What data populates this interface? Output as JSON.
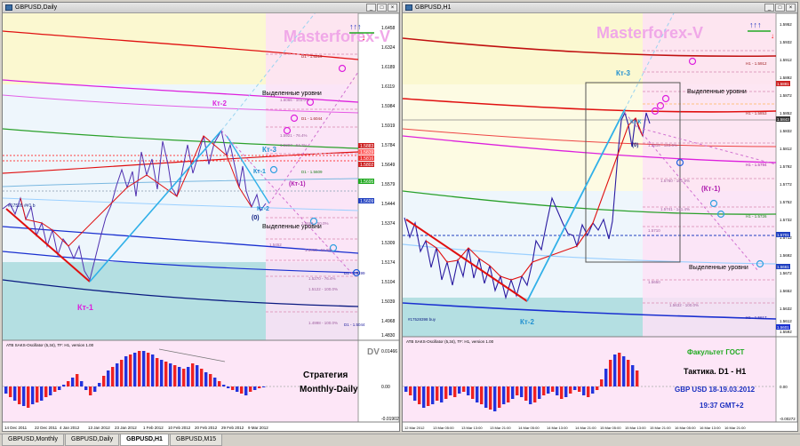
{
  "tabs": [
    "GBPUSD,Monthly",
    "GBPUSD,Daily",
    "GBPUSD,H1",
    "GBPUSD,M15"
  ],
  "active_tab": 2,
  "left": {
    "title": "GBPUSD,Daily",
    "watermark": "Masterforex-V",
    "arrows": "↑↑↑",
    "arrow_down": "↓",
    "prices": [
      "1.6458",
      "1.6324",
      "1.6189",
      "1.6119",
      "1.5984",
      "1.5919",
      "1.5784",
      "1.5649",
      "1.5579",
      "1.5444",
      "1.5374",
      "1.5309",
      "1.5174",
      "1.5104",
      "1.5039",
      "1.4968",
      "1.4830"
    ],
    "hl_boxes": [
      "1.5883",
      "1.5839",
      "1.5816",
      "1.5802",
      "1.5695",
      "1.5609"
    ],
    "level_labels": {
      "d1_upper": "D1 - 1.6219",
      "d1_mid": "D1 - 1.6044",
      "d1_low": "D1 - 1.5609",
      "d1_bottom": "D1 - 1.5044",
      "d1_1": "D1 - 1.5199",
      "lbl_a": "1.6066 - 103.0%",
      "lbl_b": "1.5921 - 76.4%",
      "lbl_c": "1.5807 - 64.2%",
      "lbl_d": "1.5691 - 50.0%",
      "lbl_e": "1.5413 - 61.8%",
      "lbl_f": "1.5270 - 76.4%",
      "lbl_g": "1.5122 - 100.0%",
      "lbl_h": "1.4998 - 100.0%",
      "lbl_i": "1.5452"
    },
    "buy_label": "#17526 ##1 b",
    "selected_upper": "Выделенные уровни",
    "selected_lower": "Выделенные уровни",
    "kt2": "Кт-2",
    "kt3": "Кт-3",
    "kt1_small": "Кт-1",
    "kt1_paren": "(Кт-1)",
    "kt2_small": "Кт-2",
    "zero": "(0)",
    "kt1_big": "Кт-1",
    "osc_title": "ATB SAKS-Oscillator (5,34), TF: H1, version 1.00",
    "osc_levels": [
      "0.01466",
      "0.00",
      "-0.01902"
    ],
    "dv": "DV",
    "strategy1": "Стратегия",
    "strategy2": "Monthly-Daily",
    "dates": [
      "14 Dec 2011",
      "22 Dec 2011",
      "4 Jan 2012",
      "13 Jan 2012",
      "23 Jan 2012",
      "1 Feb 2012",
      "10 Feb 2012",
      "20 Feb 2012",
      "29 Feb 2012",
      "9 Mar 2012"
    ]
  },
  "right": {
    "title": "GBPUSD,H1",
    "watermark": "Masterforex-V",
    "arrows": "↑↑↑",
    "arrow_down": "↓",
    "prices": [
      "1.5952",
      "1.5932",
      "1.5912",
      "1.5892",
      "1.5872",
      "1.5852",
      "1.5832",
      "1.5812",
      "1.5792",
      "1.5772",
      "1.5752",
      "1.5732",
      "1.5712",
      "1.5692",
      "1.5672",
      "1.5652",
      "1.5632",
      "1.5612",
      "1.5592"
    ],
    "hl_boxes": [
      "1.5881",
      "1.5843",
      "1.5701",
      "1.5661",
      "1.5601"
    ],
    "level_labels": {
      "h1_a": "H1 - 1.5912",
      "h1_b": "H1 - 1.5853",
      "h1_c": "H1 - 1.5794",
      "h1_d": "H1 - 1.5726",
      "h1_e": "H1 - 1.5617",
      "lbl_a": "1.5818 - 123.6%",
      "lbl_b": "1.5760 - 161.8%",
      "lbl_c": "1.5741 - 141.4%",
      "lbl_d": "1.5710",
      "lbl_e": "1.5650",
      "lbl_f": "1.5632 - 100.0%"
    },
    "buy_label": "#17528398 buy",
    "selected_upper": "Выделенные уровни",
    "selected_lower": "Выделенные уровни",
    "kt3": "Кт-3",
    "kt2": "Кт-2",
    "kt1_paren": "(Кт-1)",
    "kt_small": "Кт-К",
    "zero": "(0)",
    "osc_title": "ATB SAKS-Oscillator (5,34), TF: H1, version 1.00",
    "osc_levels": [
      "0.00",
      "-0.00272"
    ],
    "faculty": "Факультет ГОСТ",
    "tactic": "Тактика. D1 - H1",
    "pair_date": "GBP USD 18-19.03.2012",
    "time": "19:37 GMT+2",
    "dates": [
      "12 Mar 2012",
      "13 Mar 05:00",
      "13 Mar 13:00",
      "13 Mar 21:00",
      "14 Mar 05:00",
      "14 Mar 13:00",
      "14 Mar 21:00",
      "15 Mar 05:00",
      "15 Mar 13:00",
      "15 Mar 21:00",
      "16 Mar 05:00",
      "16 Mar 13:00",
      "16 Mar 21:00"
    ]
  },
  "colors": {
    "accent_red": "#ff0000",
    "magenta": "#e000e0",
    "blue": "#1a30d0",
    "cyan_line": "#30b0e8",
    "green_title": "#22aa22",
    "navy_text": "#1a2fc0"
  }
}
